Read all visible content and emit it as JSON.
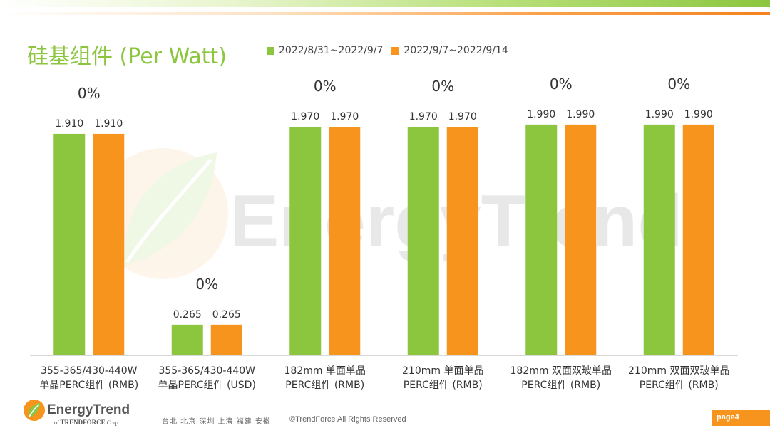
{
  "slide": {
    "title": "硅基组件 (Per Watt)",
    "page_label": "page4"
  },
  "colors": {
    "green": "#8cc63f",
    "orange": "#f7941d",
    "title": "#8cc63f",
    "text": "#333333"
  },
  "legend": [
    {
      "label": "2022/8/31~2022/9/7",
      "color": "#8cc63f"
    },
    {
      "label": "2022/9/7~2022/9/14",
      "color": "#f7941d"
    }
  ],
  "chart_data": {
    "type": "bar",
    "title": "硅基组件 (Per Watt)",
    "categories": [
      [
        "355-365/430-440W",
        "单晶PERC组件 (RMB)"
      ],
      [
        "355-365/430-440W",
        "单晶PERC组件 (USD)"
      ],
      [
        "182mm 单面单晶",
        "PERC组件 (RMB)"
      ],
      [
        "210mm 单面单晶",
        "PERC组件 (RMB)"
      ],
      [
        "182mm 双面双玻单晶",
        "PERC组件 (RMB)"
      ],
      [
        "210mm 双面双玻单晶",
        "PERC组件 (RMB)"
      ]
    ],
    "series": [
      {
        "name": "2022/8/31~2022/9/7",
        "color": "#8cc63f",
        "values": [
          1.91,
          0.265,
          1.97,
          1.97,
          1.99,
          1.99
        ]
      },
      {
        "name": "2022/9/7~2022/9/14",
        "color": "#f7941d",
        "values": [
          1.91,
          0.265,
          1.97,
          1.97,
          1.99,
          1.99
        ]
      }
    ],
    "value_labels": [
      [
        "1.910",
        "0.265",
        "1.970",
        "1.970",
        "1.990",
        "1.990"
      ],
      [
        "1.910",
        "0.265",
        "1.970",
        "1.970",
        "1.990",
        "1.990"
      ]
    ],
    "change_labels": [
      "0%",
      "0%",
      "0%",
      "0%",
      "0%",
      "0%"
    ],
    "ylim": [
      0,
      2.18
    ],
    "grid": false,
    "legend_position": "top"
  },
  "watermark": {
    "text": "EnergyTrend"
  },
  "footer": {
    "brand": "EnergyTrend",
    "brand_prefix": "of",
    "brand_parent": "TRENDFORCE",
    "brand_suffix": "Corp.",
    "cities": "台北 北京 深圳 上海 福建 安徽",
    "copyright": "©TrendForce All Rights Reserved"
  }
}
